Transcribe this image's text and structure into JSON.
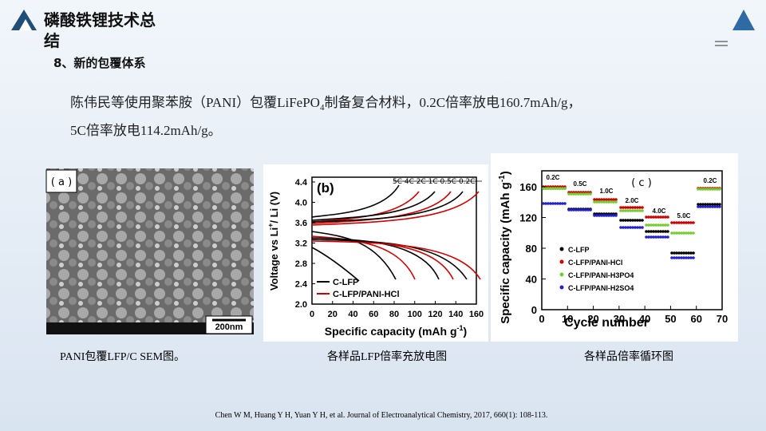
{
  "header": {
    "title": [
      "磷酸铁锂技术总",
      "结"
    ]
  },
  "section": "8、新的包覆体系",
  "paragraph": {
    "line1": [
      "陈伟民等使用聚苯胺（PANI）包覆LiFePO",
      "4",
      "制备复合材料，0.2C倍率放电160.7mAh/g，"
    ],
    "line2": "5C倍率放电114.2mAh/g。"
  },
  "figures": [
    {
      "label": "( a )",
      "scale": "200nm",
      "caption": "PANI包覆LFP/C SEM图。"
    },
    {
      "label": "(b)",
      "caption": "各样品LFP倍率充放电图",
      "ylabel": [
        "Voltage vs Li",
        "+",
        "/ Li (V)"
      ],
      "xlabel": [
        "Specific capacity (mAh g",
        "-1",
        ")"
      ],
      "yticks": [
        "2.0",
        "2.4",
        "2.8",
        "3.2",
        "3.6",
        "4.0",
        "4.4"
      ],
      "xticks": [
        "0",
        "20",
        "40",
        "60",
        "80",
        "100",
        "120",
        "140",
        "160"
      ],
      "rates": "5C  4C  2C  1C  0.5C  0.2C",
      "legend": [
        "C-LFP",
        "C-LFP/PANI-HCl"
      ]
    },
    {
      "label": "( c )",
      "caption": "各样品倍率循环图",
      "ylabel": [
        "Specific capacity (mAh g",
        "-1",
        ")"
      ],
      "xlabel": "Cycle number",
      "yticks": [
        "0",
        "40",
        "80",
        "120",
        "160"
      ],
      "xticks": [
        "0",
        "10",
        "20",
        "30",
        "40",
        "50",
        "60",
        "70"
      ],
      "rates": [
        "0.2C",
        "0.5C",
        "1.0C",
        "2.0C",
        "4.0C",
        "5.0C",
        "0.2C"
      ],
      "legend": [
        "C-LFP",
        "C-LFP/PANI-HCl",
        "C-LFP/PANI-H3PO4",
        "C-LFP/PANI-H2SO4"
      ]
    }
  ],
  "citation": "Chen W M, Huang Y H, Yuan Y H, et al. Journal of Electroanalytical Chemistry, 2017, 660(1): 108-113."
}
